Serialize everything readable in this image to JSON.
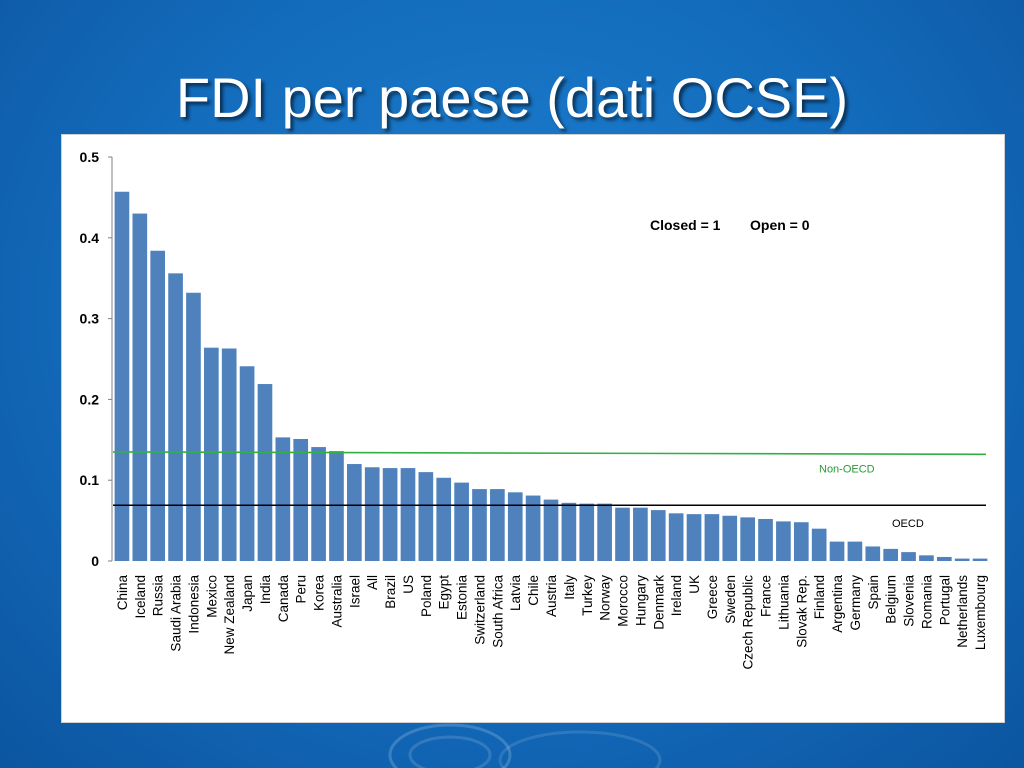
{
  "slide": {
    "title": "FDI per paese (dati OCSE)"
  },
  "colors": {
    "bar": "#4f81bd",
    "non_oecd_line": "#33b044",
    "oecd_line": "#000000",
    "non_oecd_label": "#2a9a38"
  },
  "chart_data": {
    "type": "bar",
    "title": "",
    "xlabel": "",
    "ylabel": "",
    "ylim": [
      0,
      0.5
    ],
    "yticks": [
      "0",
      "0.1",
      "0.2",
      "0.3",
      "0.4",
      "0.5"
    ],
    "annotation_closed": "Closed = 1",
    "annotation_open": "Open = 0",
    "categories": [
      "China",
      "Iceland",
      "Russia",
      "Saudi Arabia",
      "Indonesia",
      "Mexico",
      "New Zealand",
      "Japan",
      "India",
      "Canada",
      "Peru",
      "Korea",
      "Australia",
      "Israel",
      "All",
      "Brazil",
      "US",
      "Poland",
      "Egypt",
      "Estonia",
      "Switzerland",
      "South Africa",
      "Latvia",
      "Chile",
      "Austria",
      "Italy",
      "Turkey",
      "Norway",
      "Morocco",
      "Hungary",
      "Denmark",
      "Ireland",
      "UK",
      "Greece",
      "Sweden",
      "Czech Republic",
      "France",
      "Lithuania",
      "Slovak Rep.",
      "Finland",
      "Argentina",
      "Germany",
      "Spain",
      "Belgium",
      "Slovenia",
      "Romania",
      "Portugal",
      "Netherlands",
      "Luxembourg"
    ],
    "values": [
      0.457,
      0.43,
      0.384,
      0.356,
      0.332,
      0.264,
      0.263,
      0.241,
      0.219,
      0.153,
      0.151,
      0.141,
      0.136,
      0.12,
      0.116,
      0.115,
      0.115,
      0.11,
      0.103,
      0.097,
      0.089,
      0.089,
      0.085,
      0.081,
      0.076,
      0.072,
      0.071,
      0.071,
      0.066,
      0.066,
      0.063,
      0.059,
      0.058,
      0.058,
      0.056,
      0.054,
      0.052,
      0.049,
      0.048,
      0.04,
      0.024,
      0.024,
      0.018,
      0.015,
      0.011,
      0.007,
      0.005,
      0.003,
      0.003
    ],
    "reference_lines": [
      {
        "name": "Non-OECD",
        "start": 0.135,
        "end": 0.132
      },
      {
        "name": "OECD",
        "start": 0.069,
        "end": 0.069
      }
    ]
  }
}
